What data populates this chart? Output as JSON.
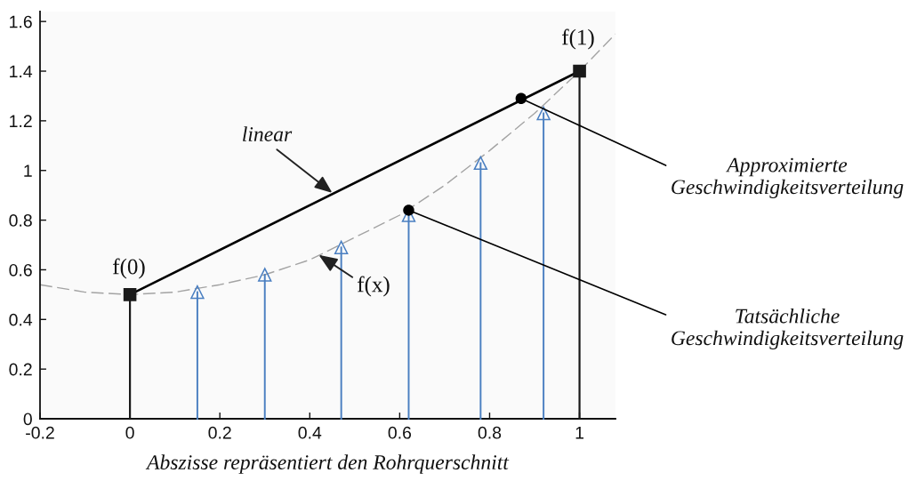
{
  "chart_data": {
    "type": "line",
    "xlabel": "Abszisse repräsentiert den Rohrquerschnitt",
    "xlim": [
      -0.2,
      1.08
    ],
    "ylim": [
      0,
      1.64
    ],
    "xticks": [
      -0.2,
      0,
      0.2,
      0.4,
      0.6,
      0.8,
      1
    ],
    "yticks": [
      0,
      0.2,
      0.4,
      0.6,
      0.8,
      1,
      1.2,
      1.4,
      1.6
    ],
    "series": [
      {
        "x": [
          -0.2,
          -0.1,
          0,
          0.1,
          0.2,
          0.3,
          0.4,
          0.5,
          0.6,
          0.7,
          0.8,
          0.9,
          1,
          1.08
        ],
        "values": [
          0.54,
          0.51,
          0.5,
          0.51,
          0.54,
          0.58,
          0.64,
          0.73,
          0.82,
          0.94,
          1.08,
          1.23,
          1.4,
          1.55
        ],
        "color": "#a3a3a3",
        "line_style": "dashed"
      },
      {
        "x": [
          0,
          1
        ],
        "values": [
          0.5,
          1.4
        ],
        "color": "#000000",
        "line_style": "solid"
      },
      {
        "type": "lollipop",
        "x": [
          0.15,
          0.3,
          0.47,
          0.62,
          0.78,
          0.92
        ],
        "values": [
          0.51,
          0.58,
          0.69,
          0.82,
          1.03,
          1.23
        ],
        "color": "#4a7fc1",
        "marker": "triangle"
      },
      {
        "type": "lollipop",
        "x": [
          0,
          1
        ],
        "values": [
          0.5,
          1.4
        ],
        "color": "#1a1a1a",
        "marker": "square"
      },
      {
        "type": "scatter",
        "x": [
          0.87,
          0.62
        ],
        "values": [
          1.29,
          0.84
        ],
        "color": "#000000",
        "marker": "circle"
      }
    ],
    "annotations": [
      {
        "text": "f(0)",
        "x": 0,
        "y": 0.5
      },
      {
        "text": "f(1)",
        "x": 1,
        "y": 1.4
      },
      {
        "text": "linear",
        "x": 0.45,
        "y": 0.91
      },
      {
        "text": "f(x)",
        "x": 0.42,
        "y": 0.66
      },
      {
        "text": "Approximierte\nGeschwindigkeitsverteilung",
        "x": 0.87,
        "y": 1.29
      },
      {
        "text": "Tatsächliche\nGeschwindigkeitsverteilung",
        "x": 0.62,
        "y": 0.84
      }
    ]
  }
}
